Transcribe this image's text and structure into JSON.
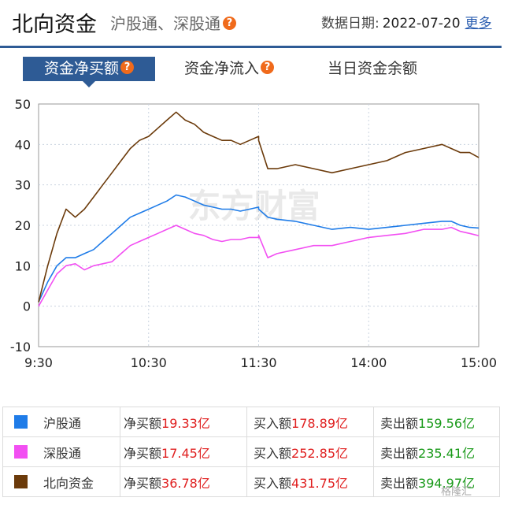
{
  "header": {
    "title": "北向资金",
    "subtitle": "沪股通、深股通",
    "help_icon_glyph": "?",
    "date_label": "数据日期:",
    "date_value": "2022-07-20",
    "more_link": "更多"
  },
  "tabs": [
    {
      "label": "资金净买额",
      "active": true
    },
    {
      "label": "资金净流入",
      "active": false
    },
    {
      "label": "当日资金余额",
      "active": false
    }
  ],
  "chart_watermark": "东方财富",
  "chart_data": {
    "type": "line",
    "xlim": [
      "9:30",
      "15:00"
    ],
    "ylim": [
      -10,
      50
    ],
    "yticks": [
      "50",
      "40",
      "30",
      "20",
      "10",
      "0",
      "-10"
    ],
    "xticks": [
      "9:30",
      "10:30",
      "11:30",
      "14:00",
      "15:00"
    ],
    "grid": true,
    "series": [
      {
        "name": "沪股通",
        "color": "#1f7ce8",
        "points": [
          [
            "09:30",
            1
          ],
          [
            "09:35",
            6
          ],
          [
            "09:40",
            10
          ],
          [
            "09:45",
            12
          ],
          [
            "09:50",
            12
          ],
          [
            "09:55",
            13
          ],
          [
            "10:00",
            14
          ],
          [
            "10:05",
            16
          ],
          [
            "10:10",
            18
          ],
          [
            "10:15",
            20
          ],
          [
            "10:20",
            22
          ],
          [
            "10:25",
            23
          ],
          [
            "10:30",
            24
          ],
          [
            "10:35",
            25
          ],
          [
            "10:40",
            26
          ],
          [
            "10:45",
            27.5
          ],
          [
            "10:50",
            27
          ],
          [
            "10:55",
            26
          ],
          [
            "11:00",
            25
          ],
          [
            "11:05",
            24.5
          ],
          [
            "11:10",
            24
          ],
          [
            "11:15",
            24
          ],
          [
            "11:20",
            23.5
          ],
          [
            "11:25",
            24
          ],
          [
            "11:30",
            24.5
          ],
          [
            "13:00",
            24
          ],
          [
            "13:05",
            22
          ],
          [
            "13:10",
            21.5
          ],
          [
            "13:20",
            21
          ],
          [
            "13:30",
            20
          ],
          [
            "13:40",
            19
          ],
          [
            "13:50",
            19.5
          ],
          [
            "14:00",
            19
          ],
          [
            "14:10",
            19.5
          ],
          [
            "14:20",
            20
          ],
          [
            "14:30",
            20.5
          ],
          [
            "14:40",
            21
          ],
          [
            "14:45",
            21
          ],
          [
            "14:50",
            20
          ],
          [
            "14:55",
            19.5
          ],
          [
            "15:00",
            19.33
          ]
        ]
      },
      {
        "name": "深股通",
        "color": "#f24ff2",
        "points": [
          [
            "09:30",
            0
          ],
          [
            "09:35",
            4
          ],
          [
            "09:40",
            8
          ],
          [
            "09:45",
            10
          ],
          [
            "09:50",
            10.5
          ],
          [
            "09:55",
            9
          ],
          [
            "10:00",
            10
          ],
          [
            "10:05",
            10.5
          ],
          [
            "10:10",
            11
          ],
          [
            "10:15",
            13
          ],
          [
            "10:20",
            15
          ],
          [
            "10:25",
            16
          ],
          [
            "10:30",
            17
          ],
          [
            "10:35",
            18
          ],
          [
            "10:40",
            19
          ],
          [
            "10:45",
            20
          ],
          [
            "10:50",
            19
          ],
          [
            "10:55",
            18
          ],
          [
            "11:00",
            17.5
          ],
          [
            "11:05",
            16.5
          ],
          [
            "11:10",
            16
          ],
          [
            "11:15",
            16.5
          ],
          [
            "11:20",
            16.5
          ],
          [
            "11:25",
            17
          ],
          [
            "11:30",
            17
          ],
          [
            "13:00",
            17.5
          ],
          [
            "13:05",
            12
          ],
          [
            "13:10",
            13
          ],
          [
            "13:20",
            14
          ],
          [
            "13:30",
            15
          ],
          [
            "13:40",
            15
          ],
          [
            "13:50",
            16
          ],
          [
            "14:00",
            17
          ],
          [
            "14:10",
            17.5
          ],
          [
            "14:20",
            18
          ],
          [
            "14:30",
            19
          ],
          [
            "14:40",
            19
          ],
          [
            "14:45",
            19.5
          ],
          [
            "14:50",
            18.5
          ],
          [
            "14:55",
            18
          ],
          [
            "15:00",
            17.45
          ]
        ]
      },
      {
        "name": "北向资金",
        "color": "#6b3a0a",
        "points": [
          [
            "09:30",
            1
          ],
          [
            "09:35",
            10
          ],
          [
            "09:40",
            18
          ],
          [
            "09:45",
            24
          ],
          [
            "09:50",
            22
          ],
          [
            "09:55",
            24
          ],
          [
            "10:00",
            27
          ],
          [
            "10:05",
            30
          ],
          [
            "10:10",
            33
          ],
          [
            "10:15",
            36
          ],
          [
            "10:20",
            39
          ],
          [
            "10:25",
            41
          ],
          [
            "10:30",
            42
          ],
          [
            "10:35",
            44
          ],
          [
            "10:40",
            46
          ],
          [
            "10:45",
            48
          ],
          [
            "10:50",
            46
          ],
          [
            "10:55",
            45
          ],
          [
            "11:00",
            43
          ],
          [
            "11:05",
            42
          ],
          [
            "11:10",
            41
          ],
          [
            "11:15",
            41
          ],
          [
            "11:20",
            40
          ],
          [
            "11:25",
            41
          ],
          [
            "11:30",
            42
          ],
          [
            "13:00",
            41
          ],
          [
            "13:05",
            34
          ],
          [
            "13:10",
            34
          ],
          [
            "13:20",
            35
          ],
          [
            "13:30",
            34
          ],
          [
            "13:40",
            33
          ],
          [
            "13:50",
            34
          ],
          [
            "14:00",
            35
          ],
          [
            "14:10",
            36
          ],
          [
            "14:20",
            38
          ],
          [
            "14:30",
            39
          ],
          [
            "14:40",
            40
          ],
          [
            "14:45",
            39
          ],
          [
            "14:50",
            38
          ],
          [
            "14:55",
            38
          ],
          [
            "15:00",
            36.78
          ]
        ]
      }
    ]
  },
  "legend": [
    {
      "name": "沪股通",
      "color": "#1f7ce8",
      "net_label": "净买额",
      "net_value": "19.33亿",
      "buy_label": "买入额",
      "buy_value": "178.89亿",
      "sell_label": "卖出额",
      "sell_value": "159.56亿"
    },
    {
      "name": "深股通",
      "color": "#f24ff2",
      "net_label": "净买额",
      "net_value": "17.45亿",
      "buy_label": "买入额",
      "buy_value": "252.85亿",
      "sell_label": "卖出额",
      "sell_value": "235.41亿"
    },
    {
      "name": "北向资金",
      "color": "#6b3a0a",
      "net_label": "净买额",
      "net_value": "36.78亿",
      "buy_label": "买入额",
      "buy_value": "431.75亿",
      "sell_label": "卖出额",
      "sell_value": "394.97亿"
    }
  ],
  "page_watermark": "格隆汇"
}
